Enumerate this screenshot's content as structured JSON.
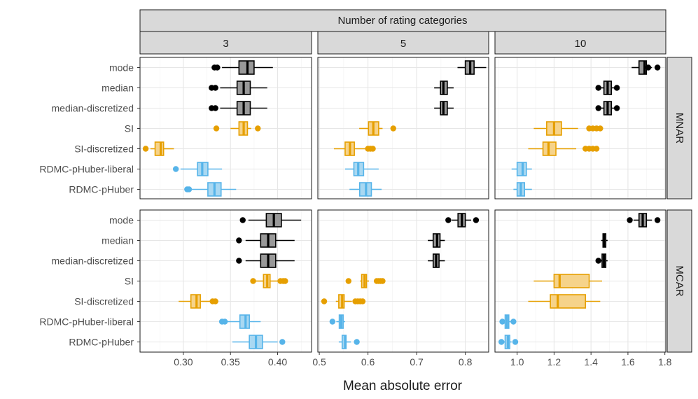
{
  "chart_data": {
    "type": "boxplot",
    "title": "Number of rating categories",
    "xlabel": "Mean absolute error",
    "ylabel": "",
    "grid": true,
    "column_facets": [
      "3",
      "5",
      "10"
    ],
    "row_facets": [
      "MNAR",
      "MCAR"
    ],
    "methods": [
      "mode",
      "median",
      "median-discretized",
      "SI",
      "SI-discretized",
      "RDMC-pHuber-liberal",
      "RDMC-pHuber"
    ],
    "method_colors": {
      "mode": "#999999",
      "median": "#999999",
      "median-discretized": "#999999",
      "SI": "#F6D38A",
      "SI-discretized": "#F6D38A",
      "RDMC-pHuber-liberal": "#A9D8F2",
      "RDMC-pHuber": "#A9D8F2"
    },
    "method_line_colors": {
      "mode": "#000000",
      "median": "#000000",
      "median-discretized": "#000000",
      "SI": "#E69F00",
      "SI-discretized": "#E69F00",
      "RDMC-pHuber-liberal": "#56B4E9",
      "RDMC-pHuber": "#56B4E9"
    },
    "x_axes": {
      "3": {
        "xlim": [
          0.254,
          0.436
        ],
        "ticks": [
          "0.30",
          "0.35",
          "0.40"
        ],
        "tick_values": [
          0.3,
          0.35,
          0.4
        ]
      },
      "5": {
        "xlim": [
          0.497,
          0.848
        ],
        "ticks": [
          "0.5",
          "0.6",
          "0.7",
          "0.8"
        ],
        "tick_values": [
          0.5,
          0.6,
          0.7,
          0.8
        ]
      },
      "10": {
        "xlim": [
          0.88,
          1.805
        ],
        "ticks": [
          "1.0",
          "1.2",
          "1.4",
          "1.6",
          "1.8"
        ],
        "tick_values": [
          1.0,
          1.2,
          1.4,
          1.6,
          1.8
        ]
      }
    },
    "boxes": {
      "MNAR": {
        "3": {
          "mode": {
            "wlo": 0.341,
            "q1": 0.359,
            "med": 0.368,
            "q3": 0.375,
            "whi": 0.395,
            "out": [
              0.333,
              0.336
            ]
          },
          "median": {
            "wlo": 0.339,
            "q1": 0.357,
            "med": 0.364,
            "q3": 0.371,
            "whi": 0.389,
            "out": [
              0.33,
              0.334
            ]
          },
          "median-discretized": {
            "wlo": 0.339,
            "q1": 0.357,
            "med": 0.364,
            "q3": 0.371,
            "whi": 0.389,
            "out": [
              0.33,
              0.334
            ]
          },
          "SI": {
            "wlo": 0.35,
            "q1": 0.359,
            "med": 0.364,
            "q3": 0.368,
            "whi": 0.372,
            "out": [
              0.335,
              0.379
            ]
          },
          "SI-discretized": {
            "wlo": 0.265,
            "q1": 0.27,
            "med": 0.276,
            "q3": 0.279,
            "whi": 0.29,
            "out": [
              0.26
            ]
          },
          "RDMC-pHuber-liberal": {
            "wlo": 0.297,
            "q1": 0.315,
            "med": 0.32,
            "q3": 0.326,
            "whi": 0.341,
            "out": [
              0.292
            ]
          },
          "RDMC-pHuber": {
            "wlo": 0.307,
            "q1": 0.326,
            "med": 0.333,
            "q3": 0.34,
            "whi": 0.356,
            "out": [
              0.304,
              0.306
            ]
          }
        },
        "5": {
          "mode": {
            "wlo": 0.784,
            "q1": 0.8,
            "med": 0.81,
            "q3": 0.818,
            "whi": 0.843,
            "out": []
          },
          "median": {
            "wlo": 0.736,
            "q1": 0.749,
            "med": 0.755,
            "q3": 0.763,
            "whi": 0.776,
            "out": []
          },
          "median-discretized": {
            "wlo": 0.736,
            "q1": 0.749,
            "med": 0.755,
            "q3": 0.763,
            "whi": 0.776,
            "out": []
          },
          "SI": {
            "wlo": 0.582,
            "q1": 0.601,
            "med": 0.611,
            "q3": 0.622,
            "whi": 0.63,
            "out": [
              0.652
            ]
          },
          "SI-discretized": {
            "wlo": 0.53,
            "q1": 0.553,
            "med": 0.563,
            "q3": 0.572,
            "whi": 0.597,
            "out": [
              0.6,
              0.605,
              0.61
            ]
          },
          "RDMC-pHuber-liberal": {
            "wlo": 0.553,
            "q1": 0.571,
            "med": 0.58,
            "q3": 0.591,
            "whi": 0.622,
            "out": []
          },
          "RDMC-pHuber": {
            "wlo": 0.562,
            "q1": 0.583,
            "med": 0.596,
            "q3": 0.607,
            "whi": 0.628,
            "out": []
          }
        },
        "10": {
          "mode": {
            "wlo": 1.62,
            "q1": 1.66,
            "med": 1.69,
            "q3": 1.7,
            "whi": 1.73,
            "out": [
              1.71,
              1.76
            ]
          },
          "median": {
            "wlo": 1.45,
            "q1": 1.47,
            "med": 1.49,
            "q3": 1.51,
            "whi": 1.53,
            "out": [
              1.44,
              1.54
            ]
          },
          "median-discretized": {
            "wlo": 1.45,
            "q1": 1.47,
            "med": 1.49,
            "q3": 1.51,
            "whi": 1.53,
            "out": [
              1.44,
              1.54
            ]
          },
          "SI": {
            "wlo": 1.09,
            "q1": 1.16,
            "med": 1.2,
            "q3": 1.24,
            "whi": 1.33,
            "out": [
              1.39,
              1.41,
              1.43,
              1.45
            ]
          },
          "SI-discretized": {
            "wlo": 1.06,
            "q1": 1.14,
            "med": 1.17,
            "q3": 1.21,
            "whi": 1.32,
            "out": [
              1.37,
              1.39,
              1.41,
              1.43
            ]
          },
          "RDMC-pHuber-liberal": {
            "wlo": 0.97,
            "q1": 1.0,
            "med": 1.03,
            "q3": 1.05,
            "whi": 1.08,
            "out": []
          },
          "RDMC-pHuber": {
            "wlo": 0.98,
            "q1": 1.0,
            "med": 1.02,
            "q3": 1.04,
            "whi": 1.08,
            "out": []
          }
        }
      },
      "MCAR": {
        "3": {
          "mode": {
            "wlo": 0.369,
            "q1": 0.388,
            "med": 0.396,
            "q3": 0.404,
            "whi": 0.425,
            "out": [
              0.363
            ]
          },
          "median": {
            "wlo": 0.366,
            "q1": 0.382,
            "med": 0.39,
            "q3": 0.398,
            "whi": 0.418,
            "out": [
              0.359
            ]
          },
          "median-discretized": {
            "wlo": 0.366,
            "q1": 0.382,
            "med": 0.39,
            "q3": 0.398,
            "whi": 0.418,
            "out": [
              0.359
            ]
          },
          "SI": {
            "wlo": 0.376,
            "q1": 0.385,
            "med": 0.389,
            "q3": 0.392,
            "whi": 0.4,
            "out": [
              0.374,
              0.403,
              0.406,
              0.408
            ]
          },
          "SI-discretized": {
            "wlo": 0.295,
            "q1": 0.308,
            "med": 0.314,
            "q3": 0.318,
            "whi": 0.329,
            "out": [
              0.331,
              0.334
            ]
          },
          "RDMC-pHuber-liberal": {
            "wlo": 0.346,
            "q1": 0.36,
            "med": 0.366,
            "q3": 0.37,
            "whi": 0.382,
            "out": [
              0.341,
              0.344
            ]
          },
          "RDMC-pHuber": {
            "wlo": 0.352,
            "q1": 0.37,
            "med": 0.377,
            "q3": 0.384,
            "whi": 0.4,
            "out": [
              0.405
            ]
          }
        },
        "5": {
          "mode": {
            "wlo": 0.772,
            "q1": 0.785,
            "med": 0.793,
            "q3": 0.8,
            "whi": 0.812,
            "out": [
              0.765,
              0.822
            ]
          },
          "median": {
            "wlo": 0.723,
            "q1": 0.734,
            "med": 0.742,
            "q3": 0.748,
            "whi": 0.758,
            "out": []
          },
          "median-discretized": {
            "wlo": 0.723,
            "q1": 0.734,
            "med": 0.74,
            "q3": 0.746,
            "whi": 0.758,
            "out": []
          },
          "SI": {
            "wlo": 0.584,
            "q1": 0.587,
            "med": 0.593,
            "q3": 0.597,
            "whi": 0.602,
            "out": [
              0.56,
              0.618,
              0.622,
              0.626,
              0.63
            ]
          },
          "SI-discretized": {
            "wlo": 0.534,
            "q1": 0.54,
            "med": 0.547,
            "q3": 0.551,
            "whi": 0.567,
            "out": [
              0.51,
              0.574,
              0.579,
              0.584,
              0.589
            ]
          },
          "RDMC-pHuber-liberal": {
            "wlo": 0.535,
            "q1": 0.541,
            "med": 0.545,
            "q3": 0.549,
            "whi": 0.553,
            "out": [
              0.527
            ]
          },
          "RDMC-pHuber": {
            "wlo": 0.54,
            "q1": 0.547,
            "med": 0.553,
            "q3": 0.555,
            "whi": 0.565,
            "out": [
              0.577
            ]
          }
        },
        "10": {
          "mode": {
            "wlo": 1.63,
            "q1": 1.66,
            "med": 1.68,
            "q3": 1.7,
            "whi": 1.73,
            "out": [
              1.61,
              1.76
            ]
          },
          "median": {
            "wlo": 1.455,
            "q1": 1.465,
            "med": 1.47,
            "q3": 1.48,
            "whi": 1.49,
            "out": []
          },
          "median-discretized": {
            "wlo": 1.45,
            "q1": 1.46,
            "med": 1.47,
            "q3": 1.48,
            "whi": 1.49,
            "out": [
              1.44
            ]
          },
          "SI": {
            "wlo": 1.09,
            "q1": 1.2,
            "med": 1.23,
            "q3": 1.39,
            "whi": 1.46,
            "out": []
          },
          "SI-discretized": {
            "wlo": 1.06,
            "q1": 1.18,
            "med": 1.22,
            "q3": 1.37,
            "whi": 1.45,
            "out": []
          },
          "RDMC-pHuber-liberal": {
            "wlo": 0.93,
            "q1": 0.935,
            "med": 0.945,
            "q3": 0.955,
            "whi": 0.965,
            "out": [
              0.92,
              0.98
            ]
          },
          "RDMC-pHuber": {
            "wlo": 0.925,
            "q1": 0.935,
            "med": 0.95,
            "q3": 0.96,
            "whi": 0.97,
            "out": [
              0.915,
              0.99
            ]
          }
        }
      }
    }
  }
}
